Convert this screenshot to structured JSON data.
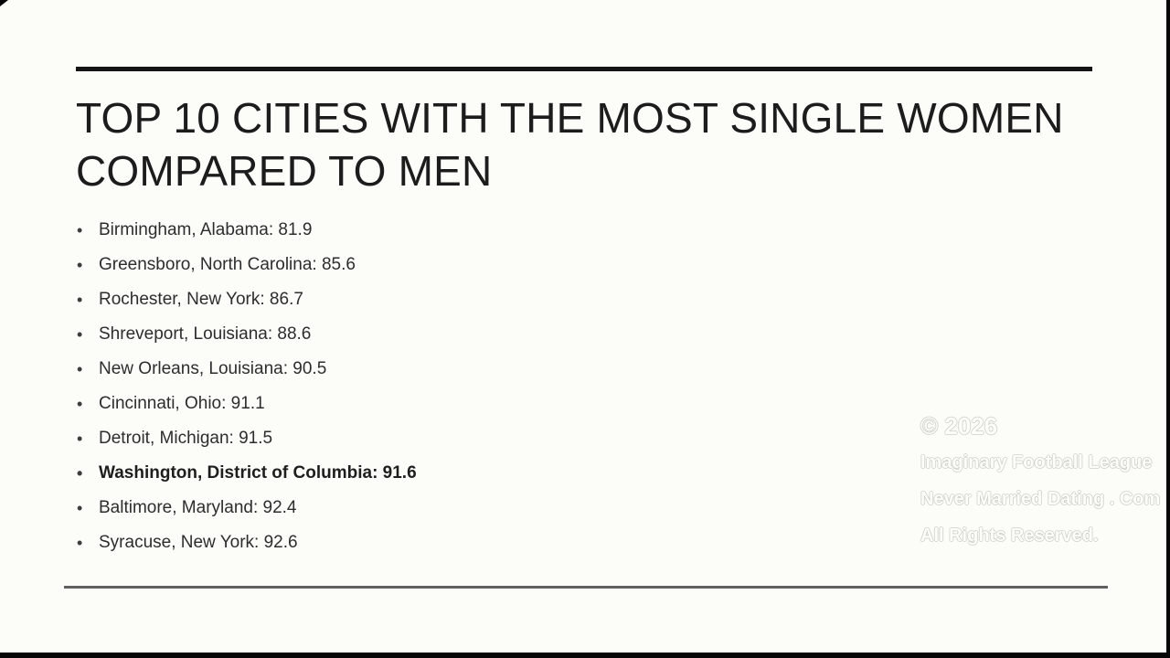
{
  "slide": {
    "title": "TOP 10 CITIES WITH THE MOST SINGLE WOMEN COMPARED TO MEN",
    "items": [
      {
        "text": "Birmingham, Alabama: 81.9"
      },
      {
        "text": "Greensboro, North Carolina: 85.6"
      },
      {
        "text": "Rochester, New York: 86.7"
      },
      {
        "text": "Shreveport, Louisiana: 88.6"
      },
      {
        "text": "New Orleans, Louisiana: 90.5"
      },
      {
        "text": "Cincinnati, Ohio: 91.1"
      },
      {
        "text": "Detroit, Michigan: 91.5"
      },
      {
        "text": "Washington, District of Columbia: 91.6"
      },
      {
        "text": "Baltimore, Maryland: 92.4"
      },
      {
        "text": "Syracuse, New York: 92.6"
      }
    ],
    "highlighted_item_index": 7
  },
  "watermark": {
    "line1": "© 2026",
    "line2": "Imaginary Football League",
    "line3": "Never Married Dating . Com",
    "line4": "All Rights Reserved."
  },
  "colors": {
    "background": "#fcfcf9",
    "title_text": "#1c1c1c",
    "body_text": "#2d2d2d",
    "rule_top": "#141414",
    "rule_bottom": "#606060",
    "frame_bar": "#070707",
    "watermark_outline": "#b8b8b2"
  }
}
